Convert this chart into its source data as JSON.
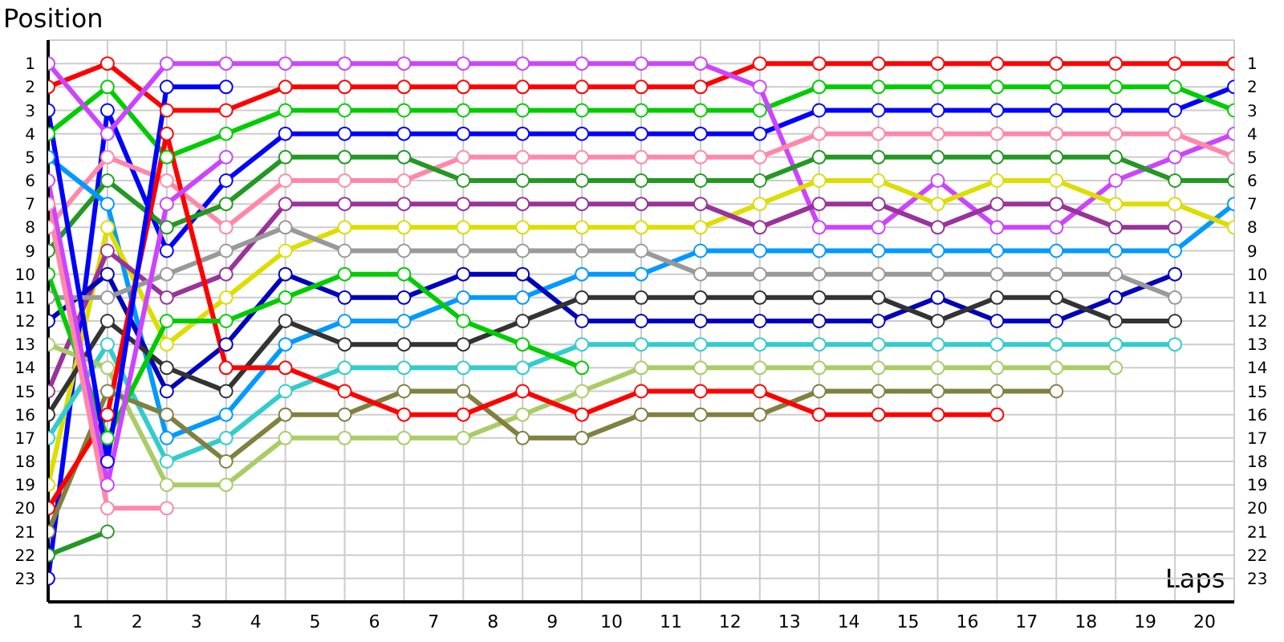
{
  "chart_data": {
    "type": "line",
    "ylabel": "Position",
    "xlabel": "Laps",
    "x": [
      0,
      1,
      2,
      3,
      4,
      5,
      6,
      7,
      8,
      9,
      10,
      11,
      12,
      13,
      14,
      15,
      16,
      17,
      18,
      19,
      20
    ],
    "xlim": [
      0,
      20
    ],
    "xticks": [
      {
        "value": 0,
        "label": null
      },
      {
        "value": 0.5,
        "label": "1"
      },
      {
        "value": 1,
        "label": null
      },
      {
        "value": 1.5,
        "label": "2"
      },
      {
        "value": 2,
        "label": null
      },
      {
        "value": 2.5,
        "label": "3"
      },
      {
        "value": 3,
        "label": null
      },
      {
        "value": 3.5,
        "label": "4"
      },
      {
        "value": 4,
        "label": null
      },
      {
        "value": 4.5,
        "label": "5"
      },
      {
        "value": 5,
        "label": null
      },
      {
        "value": 5.5,
        "label": "6"
      },
      {
        "value": 6,
        "label": null
      },
      {
        "value": 6.5,
        "label": "7"
      },
      {
        "value": 7,
        "label": null
      },
      {
        "value": 7.5,
        "label": "8"
      },
      {
        "value": 8,
        "label": null
      },
      {
        "value": 8.5,
        "label": "9"
      },
      {
        "value": 9,
        "label": null
      },
      {
        "value": 9.5,
        "label": "10"
      },
      {
        "value": 10,
        "label": null
      },
      {
        "value": 10.5,
        "label": "11"
      },
      {
        "value": 11,
        "label": null
      },
      {
        "value": 11.5,
        "label": "12"
      },
      {
        "value": 12,
        "label": null
      },
      {
        "value": 12.5,
        "label": "13"
      },
      {
        "value": 13,
        "label": null
      },
      {
        "value": 13.5,
        "label": "14"
      },
      {
        "value": 14,
        "label": null
      },
      {
        "value": 14.5,
        "label": "15"
      },
      {
        "value": 15,
        "label": null
      },
      {
        "value": 15.5,
        "label": "16"
      },
      {
        "value": 16,
        "label": null
      },
      {
        "value": 16.5,
        "label": "17"
      },
      {
        "value": 17,
        "label": null
      },
      {
        "value": 17.5,
        "label": "18"
      },
      {
        "value": 18,
        "label": null
      },
      {
        "value": 18.5,
        "label": "19"
      },
      {
        "value": 19,
        "label": null
      },
      {
        "value": 19.5,
        "label": "20"
      },
      {
        "value": 20,
        "label": null
      }
    ],
    "ylim": [
      24,
      0
    ],
    "yticks": [
      1,
      2,
      3,
      4,
      5,
      6,
      7,
      8,
      9,
      10,
      11,
      12,
      13,
      14,
      15,
      16,
      17,
      18,
      19,
      20,
      21,
      22,
      23
    ],
    "y2lim": [
      24,
      0
    ],
    "y2ticks": [
      1,
      2,
      3,
      4,
      5,
      6,
      7,
      8,
      9,
      10,
      11,
      12,
      13,
      14,
      15,
      16,
      17,
      18,
      19,
      20,
      21,
      22,
      23
    ],
    "grid": true,
    "marker": "circle",
    "line_style": "solid",
    "legend": false,
    "series": [
      {
        "color": "#ff0000",
        "values": [
          2,
          1,
          3,
          3,
          2,
          2,
          2,
          2,
          2,
          2,
          2,
          2,
          1,
          1,
          1,
          1,
          1,
          1,
          1,
          1,
          1
        ]
      },
      {
        "color": "#0000ff",
        "values": [
          23,
          3,
          9,
          6,
          4,
          4,
          4,
          4,
          4,
          4,
          4,
          4,
          4,
          3,
          3,
          3,
          3,
          3,
          3,
          3,
          2
        ]
      },
      {
        "color": "#00cc00",
        "values": [
          4,
          2,
          5,
          4,
          3,
          3,
          3,
          3,
          3,
          3,
          3,
          3,
          3,
          2,
          2,
          2,
          2,
          2,
          2,
          2,
          3
        ]
      },
      {
        "color": "#cc44ff",
        "values": [
          1,
          4,
          1,
          1,
          1,
          1,
          1,
          1,
          1,
          1,
          1,
          1,
          2,
          8,
          8,
          6,
          8,
          8,
          6,
          5,
          4
        ]
      },
      {
        "color": "#ff88aa",
        "values": [
          8,
          5,
          6,
          8,
          6,
          6,
          6,
          5,
          5,
          5,
          5,
          5,
          5,
          4,
          4,
          4,
          4,
          4,
          4,
          4,
          5
        ]
      },
      {
        "color": "#229922",
        "values": [
          9,
          6,
          8,
          7,
          5,
          5,
          5,
          6,
          6,
          6,
          6,
          6,
          6,
          5,
          5,
          5,
          5,
          5,
          5,
          6,
          6
        ]
      },
      {
        "color": "#0099ff",
        "values": [
          5,
          7,
          17,
          16,
          13,
          12,
          12,
          11,
          11,
          10,
          10,
          9,
          9,
          9,
          9,
          9,
          9,
          9,
          9,
          9,
          7
        ]
      },
      {
        "color": "#dddd00",
        "values": [
          19,
          8,
          13,
          11,
          9,
          8,
          8,
          8,
          8,
          8,
          8,
          8,
          7,
          6,
          6,
          7,
          6,
          6,
          7,
          7,
          8
        ]
      },
      {
        "color": "#993399",
        "values": [
          15,
          9,
          11,
          10,
          7,
          7,
          7,
          7,
          7,
          7,
          7,
          7,
          8,
          7,
          7,
          8,
          7,
          7,
          8,
          8,
          null
        ]
      },
      {
        "color": "#0000bb",
        "values": [
          12,
          10,
          15,
          13,
          10,
          11,
          11,
          10,
          10,
          12,
          12,
          12,
          12,
          12,
          12,
          11,
          12,
          12,
          11,
          10,
          null
        ]
      },
      {
        "color": "#999999",
        "values": [
          11,
          11,
          10,
          9,
          8,
          9,
          9,
          9,
          9,
          9,
          9,
          10,
          10,
          10,
          10,
          10,
          10,
          10,
          10,
          11,
          null
        ]
      },
      {
        "color": "#333333",
        "values": [
          16,
          12,
          14,
          15,
          12,
          13,
          13,
          13,
          12,
          11,
          11,
          11,
          11,
          11,
          11,
          12,
          11,
          11,
          12,
          12,
          null
        ]
      },
      {
        "color": "#33cccc",
        "values": [
          17,
          13,
          18,
          17,
          15,
          14,
          14,
          14,
          14,
          13,
          13,
          13,
          13,
          13,
          13,
          13,
          13,
          13,
          13,
          13,
          null
        ]
      },
      {
        "color": "#aacc66",
        "values": [
          13,
          14,
          19,
          19,
          17,
          17,
          17,
          17,
          16,
          15,
          14,
          14,
          14,
          14,
          14,
          14,
          14,
          14,
          14,
          null,
          null
        ]
      },
      {
        "color": "#808040",
        "values": [
          21,
          15,
          16,
          18,
          16,
          16,
          15,
          15,
          17,
          17,
          16,
          16,
          16,
          15,
          15,
          15,
          15,
          15,
          null,
          null,
          null
        ]
      },
      {
        "color": "#ff0000",
        "values": [
          20,
          16,
          4,
          14,
          14,
          15,
          16,
          16,
          15,
          16,
          15,
          15,
          15,
          16,
          16,
          16,
          16,
          null,
          null,
          null,
          null
        ]
      },
      {
        "color": "#00cc00",
        "values": [
          10,
          17,
          12,
          12,
          11,
          10,
          10,
          12,
          13,
          14,
          null,
          null,
          null,
          null,
          null,
          null,
          null,
          null,
          null,
          null,
          null
        ]
      },
      {
        "color": "#0000ff",
        "values": [
          3,
          18,
          2,
          2,
          null,
          null,
          null,
          null,
          null,
          null,
          null,
          null,
          null,
          null,
          null,
          null,
          null,
          null,
          null,
          null,
          null
        ]
      },
      {
        "color": "#cc44ff",
        "values": [
          6,
          19,
          7,
          5,
          null,
          null,
          null,
          null,
          null,
          null,
          null,
          null,
          null,
          null,
          null,
          null,
          null,
          null,
          null,
          null,
          null
        ]
      },
      {
        "color": "#ff88aa",
        "values": [
          7,
          20,
          20,
          null,
          null,
          null,
          null,
          null,
          null,
          null,
          null,
          null,
          null,
          null,
          null,
          null,
          null,
          null,
          null,
          null,
          null
        ]
      },
      {
        "color": "#229922",
        "values": [
          22,
          21,
          null,
          null,
          null,
          null,
          null,
          null,
          null,
          null,
          null,
          null,
          null,
          null,
          null,
          null,
          null,
          null,
          null,
          null,
          null
        ]
      }
    ]
  }
}
